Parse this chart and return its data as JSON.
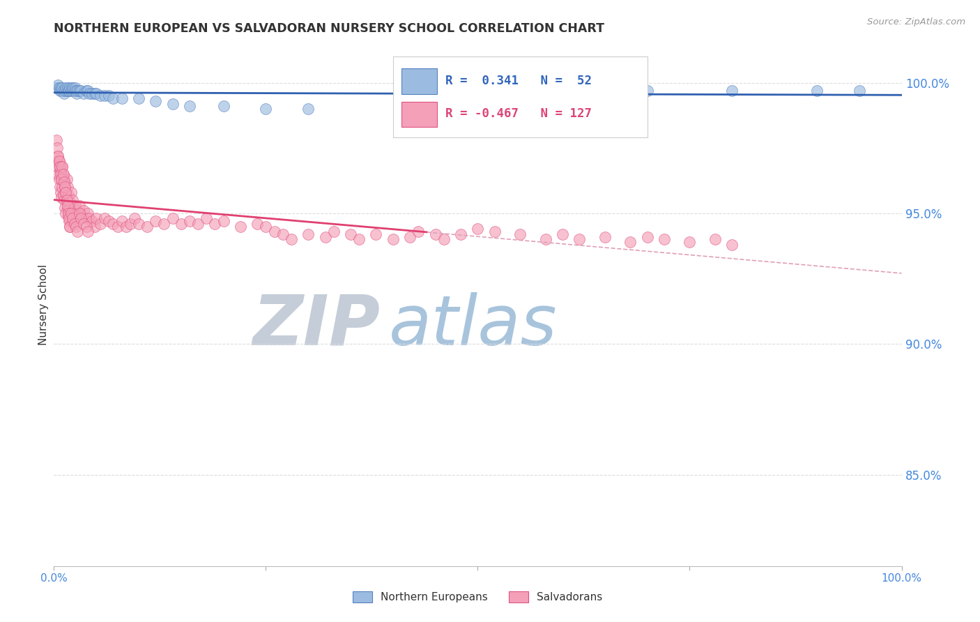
{
  "title": "NORTHERN EUROPEAN VS SALVADORAN NURSERY SCHOOL CORRELATION CHART",
  "source": "Source: ZipAtlas.com",
  "ylabel": "Nursery School",
  "legend_northern": "Northern Europeans",
  "legend_salvadoran": "Salvadorans",
  "legend_r_northern": "R =  0.341",
  "legend_n_northern": "N =  52",
  "legend_r_salvadoran": "R = -0.467",
  "legend_n_salvadoran": "N = 127",
  "ytick_labels": [
    "100.0%",
    "95.0%",
    "90.0%",
    "85.0%"
  ],
  "ytick_values": [
    1.0,
    0.95,
    0.9,
    0.85
  ],
  "xlim": [
    0.0,
    1.0
  ],
  "ylim": [
    0.815,
    1.015
  ],
  "northern_color": "#9BBCE0",
  "salvadoran_color": "#F4A0B8",
  "northern_edge_color": "#5580C0",
  "salvadoran_edge_color": "#E05080",
  "northern_line_color": "#3060B0",
  "salvadoran_line_color": "#E04070",
  "trendline_dashed_color": "#E0A0B8",
  "watermark_zip_color": "#C0CCDD",
  "watermark_atlas_color": "#A0C0E0",
  "background_color": "#FFFFFF",
  "grid_color": "#DDDDDD",
  "northern_x": [
    0.003,
    0.005,
    0.006,
    0.007,
    0.008,
    0.009,
    0.01,
    0.011,
    0.012,
    0.013,
    0.014,
    0.015,
    0.016,
    0.017,
    0.018,
    0.019,
    0.02,
    0.021,
    0.022,
    0.023,
    0.024,
    0.025,
    0.026,
    0.027,
    0.028,
    0.03,
    0.032,
    0.035,
    0.038,
    0.04,
    0.042,
    0.045,
    0.048,
    0.05,
    0.055,
    0.06,
    0.065,
    0.07,
    0.08,
    0.1,
    0.12,
    0.14,
    0.16,
    0.2,
    0.25,
    0.3,
    0.6,
    0.65,
    0.7,
    0.8,
    0.9,
    0.95
  ],
  "northern_y": [
    0.998,
    0.999,
    0.998,
    0.997,
    0.998,
    0.997,
    0.998,
    0.997,
    0.996,
    0.997,
    0.998,
    0.997,
    0.998,
    0.997,
    0.997,
    0.998,
    0.997,
    0.998,
    0.997,
    0.998,
    0.997,
    0.998,
    0.997,
    0.996,
    0.997,
    0.997,
    0.997,
    0.996,
    0.997,
    0.997,
    0.996,
    0.996,
    0.996,
    0.996,
    0.995,
    0.995,
    0.995,
    0.994,
    0.994,
    0.994,
    0.993,
    0.992,
    0.991,
    0.991,
    0.99,
    0.99,
    0.996,
    0.997,
    0.997,
    0.997,
    0.997,
    0.997
  ],
  "salvadoran_x": [
    0.003,
    0.004,
    0.005,
    0.005,
    0.006,
    0.006,
    0.007,
    0.007,
    0.008,
    0.008,
    0.009,
    0.009,
    0.01,
    0.01,
    0.011,
    0.011,
    0.012,
    0.012,
    0.013,
    0.013,
    0.014,
    0.014,
    0.015,
    0.015,
    0.016,
    0.016,
    0.017,
    0.017,
    0.018,
    0.018,
    0.019,
    0.019,
    0.02,
    0.02,
    0.022,
    0.022,
    0.024,
    0.025,
    0.026,
    0.028,
    0.03,
    0.032,
    0.035,
    0.038,
    0.04,
    0.042,
    0.045,
    0.048,
    0.05,
    0.055,
    0.06,
    0.065,
    0.07,
    0.075,
    0.08,
    0.085,
    0.09,
    0.095,
    0.1,
    0.11,
    0.12,
    0.13,
    0.14,
    0.15,
    0.16,
    0.17,
    0.18,
    0.19,
    0.2,
    0.22,
    0.24,
    0.25,
    0.26,
    0.27,
    0.28,
    0.3,
    0.32,
    0.33,
    0.35,
    0.36,
    0.38,
    0.4,
    0.42,
    0.43,
    0.45,
    0.46,
    0.48,
    0.5,
    0.52,
    0.55,
    0.58,
    0.6,
    0.62,
    0.65,
    0.68,
    0.7,
    0.72,
    0.75,
    0.78,
    0.8,
    0.003,
    0.004,
    0.005,
    0.006,
    0.007,
    0.008,
    0.009,
    0.01,
    0.011,
    0.012,
    0.013,
    0.014,
    0.015,
    0.016,
    0.017,
    0.018,
    0.019,
    0.02,
    0.022,
    0.024,
    0.026,
    0.028,
    0.03,
    0.032,
    0.035,
    0.038,
    0.04
  ],
  "salvadoran_y": [
    0.97,
    0.968,
    0.972,
    0.965,
    0.97,
    0.963,
    0.968,
    0.96,
    0.966,
    0.958,
    0.963,
    0.956,
    0.968,
    0.96,
    0.965,
    0.957,
    0.963,
    0.955,
    0.96,
    0.952,
    0.958,
    0.95,
    0.963,
    0.955,
    0.96,
    0.952,
    0.957,
    0.949,
    0.955,
    0.947,
    0.952,
    0.945,
    0.958,
    0.95,
    0.955,
    0.947,
    0.952,
    0.953,
    0.95,
    0.948,
    0.953,
    0.95,
    0.951,
    0.948,
    0.95,
    0.948,
    0.947,
    0.945,
    0.948,
    0.946,
    0.948,
    0.947,
    0.946,
    0.945,
    0.947,
    0.945,
    0.946,
    0.948,
    0.946,
    0.945,
    0.947,
    0.946,
    0.948,
    0.946,
    0.947,
    0.946,
    0.948,
    0.946,
    0.947,
    0.945,
    0.946,
    0.945,
    0.943,
    0.942,
    0.94,
    0.942,
    0.941,
    0.943,
    0.942,
    0.94,
    0.942,
    0.94,
    0.941,
    0.943,
    0.942,
    0.94,
    0.942,
    0.944,
    0.943,
    0.942,
    0.94,
    0.942,
    0.94,
    0.941,
    0.939,
    0.941,
    0.94,
    0.939,
    0.94,
    0.938,
    0.978,
    0.975,
    0.972,
    0.97,
    0.968,
    0.965,
    0.963,
    0.968,
    0.965,
    0.962,
    0.96,
    0.958,
    0.955,
    0.953,
    0.95,
    0.948,
    0.945,
    0.95,
    0.948,
    0.946,
    0.945,
    0.943,
    0.95,
    0.948,
    0.946,
    0.945,
    0.943
  ]
}
